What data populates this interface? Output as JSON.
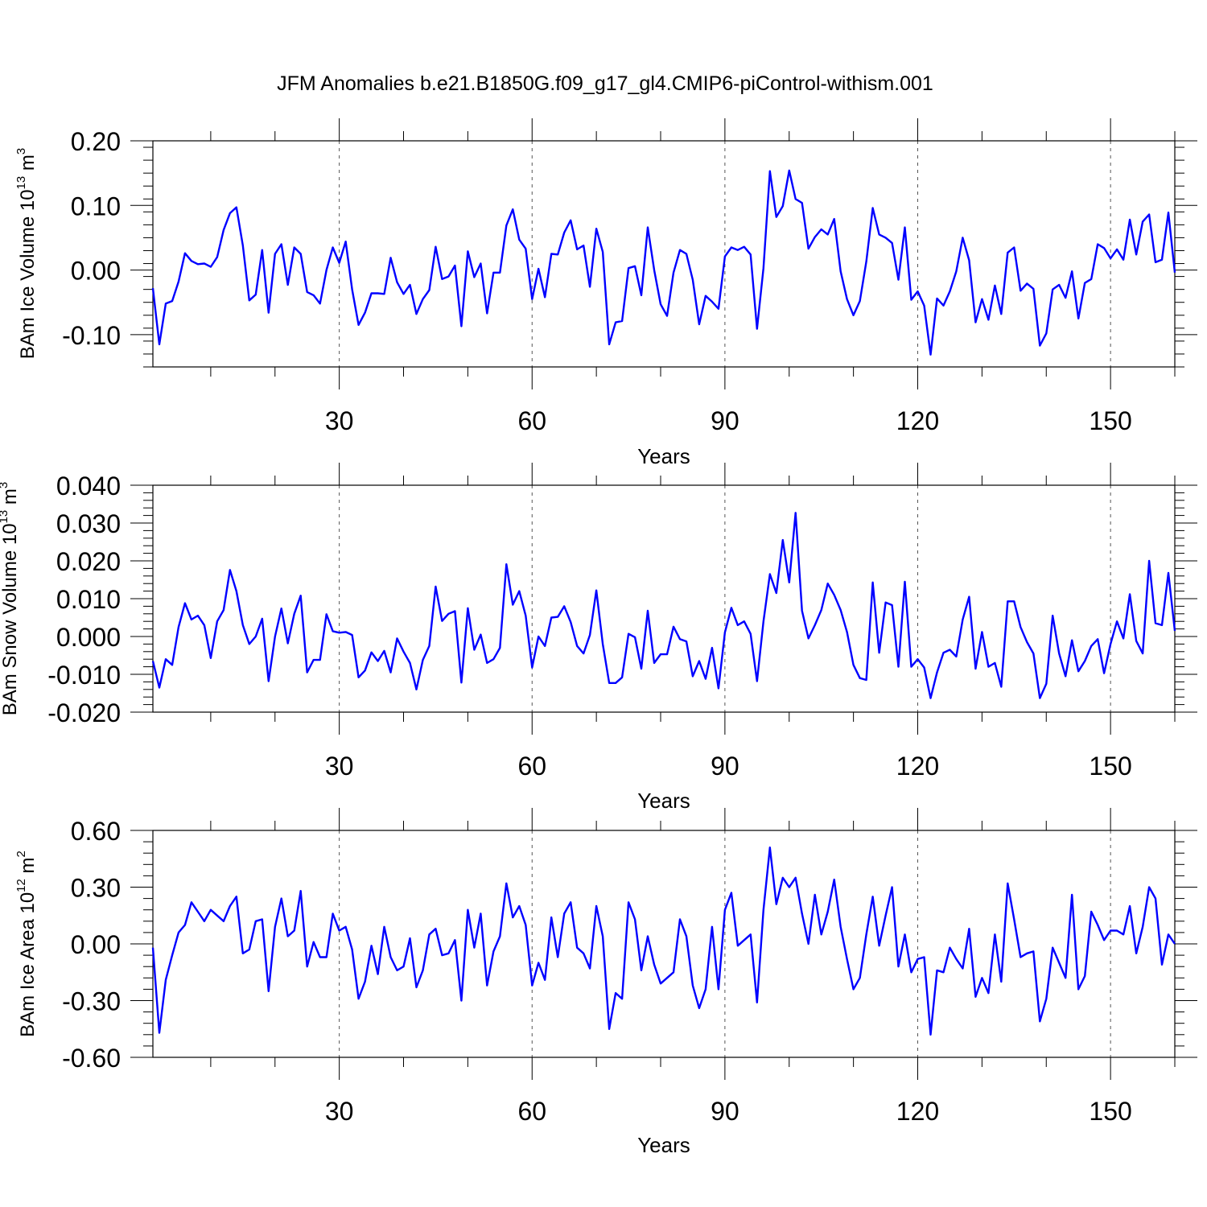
{
  "figure": {
    "title": "JFM Anomalies b.e21.B1850G.f09_g17_gl4.CMIP6-piControl-withism.001",
    "line_color": "#0000ff"
  },
  "chart_data": [
    {
      "type": "line",
      "ylabel": {
        "main": "BAm Ice Volume 10",
        "exp": "13",
        "unit": " m",
        "unit_exp": "3"
      },
      "xlabel": "Years",
      "xlim": [
        1,
        160
      ],
      "ylim": [
        -0.15,
        0.2
      ],
      "xticks": [
        30,
        60,
        90,
        120,
        150
      ],
      "xtick_labels": [
        "30",
        "60",
        "90",
        "120",
        "150"
      ],
      "yticks": [
        0.2,
        0.1,
        0.0,
        -0.1
      ],
      "ytick_labels": [
        "0.20",
        "0.10",
        "0.00",
        "-0.10"
      ],
      "grid": "vertical dashed at major x ticks",
      "values": [
        -0.028,
        -0.115,
        -0.052,
        -0.048,
        -0.018,
        0.026,
        0.014,
        0.009,
        0.01,
        0.005,
        0.02,
        0.062,
        0.088,
        0.097,
        0.038,
        -0.047,
        -0.038,
        0.031,
        -0.066,
        0.025,
        0.04,
        -0.023,
        0.035,
        0.025,
        -0.034,
        -0.039,
        -0.052,
        0.0,
        0.035,
        0.011,
        0.044,
        -0.03,
        -0.085,
        -0.066,
        -0.036,
        -0.036,
        -0.037,
        0.019,
        -0.019,
        -0.037,
        -0.023,
        -0.068,
        -0.045,
        -0.031,
        0.036,
        -0.014,
        -0.01,
        0.007,
        -0.087,
        0.029,
        -0.011,
        0.01,
        -0.067,
        -0.004,
        -0.004,
        0.069,
        0.094,
        0.047,
        0.033,
        -0.045,
        0.002,
        -0.042,
        0.025,
        0.024,
        0.058,
        0.077,
        0.032,
        0.038,
        -0.026,
        0.064,
        0.028,
        -0.115,
        -0.081,
        -0.079,
        0.003,
        0.006,
        -0.039,
        0.066,
        0.0,
        -0.053,
        -0.071,
        -0.004,
        0.031,
        0.025,
        -0.015,
        -0.084,
        -0.04,
        -0.049,
        -0.06,
        0.021,
        0.035,
        0.031,
        0.036,
        0.024,
        -0.091,
        0.003,
        0.153,
        0.082,
        0.099,
        0.154,
        0.11,
        0.104,
        0.033,
        0.051,
        0.063,
        0.055,
        0.079,
        -0.002,
        -0.045,
        -0.07,
        -0.048,
        0.013,
        0.096,
        0.055,
        0.05,
        0.042,
        -0.015,
        0.066,
        -0.046,
        -0.033,
        -0.055,
        -0.131,
        -0.044,
        -0.055,
        -0.033,
        -0.002,
        0.05,
        0.015,
        -0.081,
        -0.045,
        -0.077,
        -0.024,
        -0.068,
        0.027,
        0.035,
        -0.032,
        -0.021,
        -0.029,
        -0.117,
        -0.098,
        -0.03,
        -0.023,
        -0.043,
        -0.002,
        -0.075,
        -0.02,
        -0.014,
        0.04,
        0.034,
        0.018,
        0.032,
        0.016,
        0.078,
        0.024,
        0.075,
        0.086,
        0.012,
        0.016,
        0.089,
        -0.004
      ]
    },
    {
      "type": "line",
      "ylabel": {
        "main": "BAm Snow Volume 10",
        "exp": "13",
        "unit": " m",
        "unit_exp": "3"
      },
      "xlabel": "Years",
      "xlim": [
        1,
        160
      ],
      "ylim": [
        -0.02,
        0.04
      ],
      "xticks": [
        30,
        60,
        90,
        120,
        150
      ],
      "xtick_labels": [
        "30",
        "60",
        "90",
        "120",
        "150"
      ],
      "yticks": [
        0.04,
        0.03,
        0.02,
        0.01,
        0.0,
        -0.01,
        -0.02
      ],
      "ytick_labels": [
        "0.040",
        "0.030",
        "0.020",
        "0.010",
        "0.000",
        "-0.010",
        "-0.020"
      ],
      "grid": "vertical dashed at major x ticks",
      "values": [
        -0.0065,
        -0.0135,
        -0.006,
        -0.0075,
        0.0025,
        0.0088,
        0.0045,
        0.0055,
        0.003,
        -0.0057,
        0.004,
        0.007,
        0.0176,
        0.012,
        0.003,
        -0.002,
        0.0,
        0.0047,
        -0.0118,
        0.0,
        0.0074,
        -0.0018,
        0.006,
        0.0108,
        -0.0095,
        -0.0062,
        -0.0062,
        0.0059,
        0.0014,
        0.001,
        0.0012,
        0.0004,
        -0.0108,
        -0.009,
        -0.0042,
        -0.0065,
        -0.0038,
        -0.0095,
        -0.0005,
        -0.004,
        -0.007,
        -0.014,
        -0.0062,
        -0.0025,
        0.0132,
        0.0041,
        0.006,
        0.0067,
        -0.0122,
        0.0075,
        -0.0035,
        0.0005,
        -0.007,
        -0.006,
        -0.003,
        0.0191,
        0.0084,
        0.012,
        0.0055,
        -0.0082,
        0.0,
        -0.0025,
        0.005,
        0.0052,
        0.008,
        0.0038,
        -0.0025,
        -0.0045,
        0.0004,
        0.0122,
        -0.002,
        -0.0123,
        -0.0123,
        -0.0108,
        0.0007,
        -0.0002,
        -0.0085,
        0.0068,
        -0.007,
        -0.0047,
        -0.0047,
        0.0026,
        -0.0007,
        -0.0013,
        -0.0105,
        -0.0065,
        -0.0112,
        -0.003,
        -0.0137,
        0.0011,
        0.0076,
        0.003,
        0.004,
        0.0007,
        -0.0118,
        0.004,
        0.0165,
        0.0115,
        0.0255,
        0.0143,
        0.0327,
        0.0068,
        -0.0005,
        0.003,
        0.007,
        0.014,
        0.011,
        0.007,
        0.0012,
        -0.0075,
        -0.011,
        -0.0115,
        0.0143,
        -0.0043,
        0.009,
        0.0083,
        -0.008,
        0.0145,
        -0.008,
        -0.006,
        -0.0082,
        -0.0163,
        -0.0095,
        -0.0043,
        -0.0035,
        -0.0053,
        0.0045,
        0.0105,
        -0.0085,
        0.0012,
        -0.008,
        -0.007,
        -0.0133,
        0.0093,
        0.0093,
        0.0025,
        -0.0015,
        -0.0045,
        -0.0163,
        -0.0125,
        0.0055,
        -0.0045,
        -0.0105,
        -0.001,
        -0.0092,
        -0.0065,
        -0.0025,
        -0.0007,
        -0.0097,
        -0.002,
        0.004,
        -0.0005,
        0.0112,
        -0.0012,
        -0.0045,
        0.02,
        0.0035,
        0.003,
        0.0168,
        0.0015
      ]
    },
    {
      "type": "line",
      "ylabel": {
        "main": "BAm Ice Area 10",
        "exp": "12",
        "unit": " m",
        "unit_exp": "2"
      },
      "xlabel": "Years",
      "xlim": [
        1,
        160
      ],
      "ylim": [
        -0.6,
        0.6
      ],
      "xticks": [
        30,
        60,
        90,
        120,
        150
      ],
      "xtick_labels": [
        "30",
        "60",
        "90",
        "120",
        "150"
      ],
      "yticks": [
        0.6,
        0.3,
        0.0,
        -0.3,
        -0.6
      ],
      "ytick_labels": [
        "0.60",
        "0.30",
        "0.00",
        "-0.30",
        "-0.60"
      ],
      "grid": "vertical dashed at major x ticks",
      "values": [
        -0.02,
        -0.47,
        -0.19,
        -0.06,
        0.06,
        0.1,
        0.22,
        0.17,
        0.12,
        0.18,
        0.15,
        0.12,
        0.2,
        0.25,
        -0.05,
        -0.03,
        0.12,
        0.13,
        -0.25,
        0.09,
        0.24,
        0.04,
        0.07,
        0.28,
        -0.12,
        0.01,
        -0.07,
        -0.07,
        0.16,
        0.07,
        0.09,
        -0.03,
        -0.29,
        -0.2,
        -0.01,
        -0.16,
        0.09,
        -0.07,
        -0.14,
        -0.12,
        0.03,
        -0.23,
        -0.14,
        0.05,
        0.08,
        -0.06,
        -0.05,
        0.02,
        -0.3,
        0.18,
        -0.02,
        0.16,
        -0.22,
        -0.04,
        0.04,
        0.32,
        0.14,
        0.2,
        0.1,
        -0.22,
        -0.1,
        -0.19,
        0.14,
        -0.07,
        0.16,
        0.22,
        -0.02,
        -0.05,
        -0.13,
        0.2,
        0.04,
        -0.45,
        -0.26,
        -0.29,
        0.22,
        0.13,
        -0.14,
        0.04,
        -0.11,
        -0.21,
        -0.18,
        -0.15,
        0.13,
        0.04,
        -0.22,
        -0.34,
        -0.24,
        0.09,
        -0.24,
        0.18,
        0.27,
        -0.01,
        0.02,
        0.05,
        -0.31,
        0.18,
        0.51,
        0.21,
        0.35,
        0.3,
        0.35,
        0.16,
        0.0,
        0.26,
        0.05,
        0.17,
        0.34,
        0.09,
        -0.08,
        -0.24,
        -0.18,
        0.05,
        0.25,
        -0.01,
        0.15,
        0.3,
        -0.12,
        0.05,
        -0.15,
        -0.08,
        -0.07,
        -0.48,
        -0.14,
        -0.15,
        -0.02,
        -0.08,
        -0.13,
        0.08,
        -0.28,
        -0.18,
        -0.26,
        0.05,
        -0.2,
        0.32,
        0.13,
        -0.07,
        -0.05,
        -0.04,
        -0.41,
        -0.29,
        -0.02,
        -0.1,
        -0.18,
        0.26,
        -0.24,
        -0.17,
        0.17,
        0.1,
        0.02,
        0.07,
        0.07,
        0.05,
        0.2,
        -0.05,
        0.09,
        0.3,
        0.24,
        -0.11,
        0.05,
        0.0
      ]
    }
  ]
}
